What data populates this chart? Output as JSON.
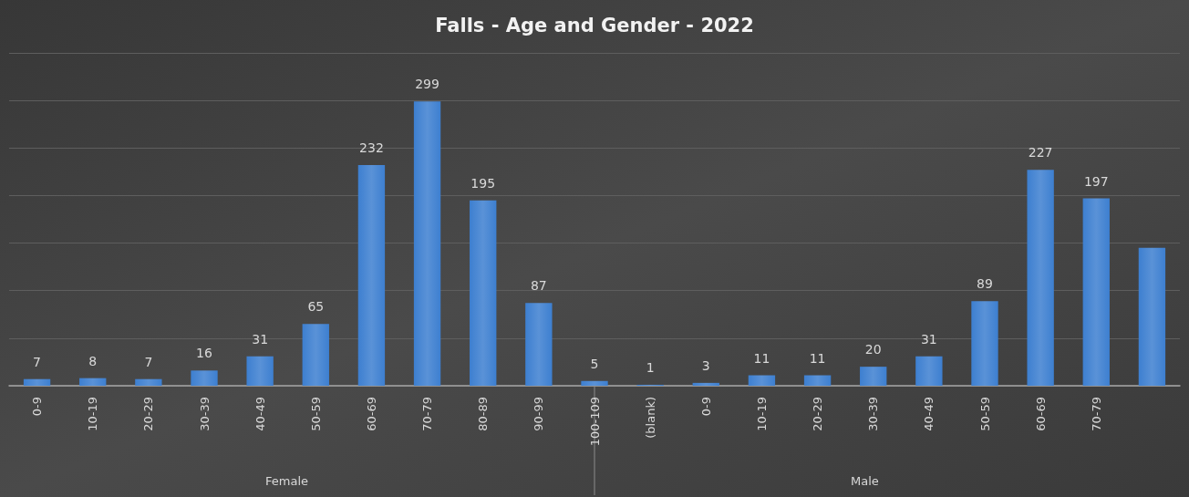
{
  "chart_data": {
    "type": "bar",
    "title": "Falls - Age and Gender - 2022",
    "categories": [
      "0-9",
      "10-19",
      "20-29",
      "30-39",
      "40-49",
      "50-59",
      "60-69",
      "70-79",
      "80-89",
      "90-99",
      "100-109",
      "(blank)",
      "0-9",
      "10-19",
      "20-29",
      "30-39",
      "40-49",
      "50-59",
      "60-69",
      "70-79",
      null
    ],
    "values": [
      7,
      8,
      7,
      16,
      31,
      65,
      232,
      299,
      195,
      87,
      5,
      1,
      3,
      11,
      11,
      20,
      31,
      89,
      227,
      197,
      145
    ],
    "value_labels": [
      "7",
      "8",
      "7",
      "16",
      "31",
      "65",
      "232",
      "299",
      "195",
      "87",
      "5",
      "1",
      "3",
      "11",
      "11",
      "20",
      "31",
      "89",
      "227",
      "197",
      null
    ],
    "color": "#3d7fd0",
    "ylim": [
      0,
      350
    ],
    "yticks": [
      {
        "value": 0,
        "label": null
      },
      {
        "value": 50,
        "label": null
      },
      {
        "value": 100,
        "label": null
      },
      {
        "value": 150,
        "label": null
      },
      {
        "value": 200,
        "label": null
      },
      {
        "value": 250,
        "label": null
      },
      {
        "value": 300,
        "label": null
      },
      {
        "value": 350,
        "label": null
      }
    ],
    "grid": "y",
    "annotations": [
      "Female",
      "Male"
    ]
  }
}
